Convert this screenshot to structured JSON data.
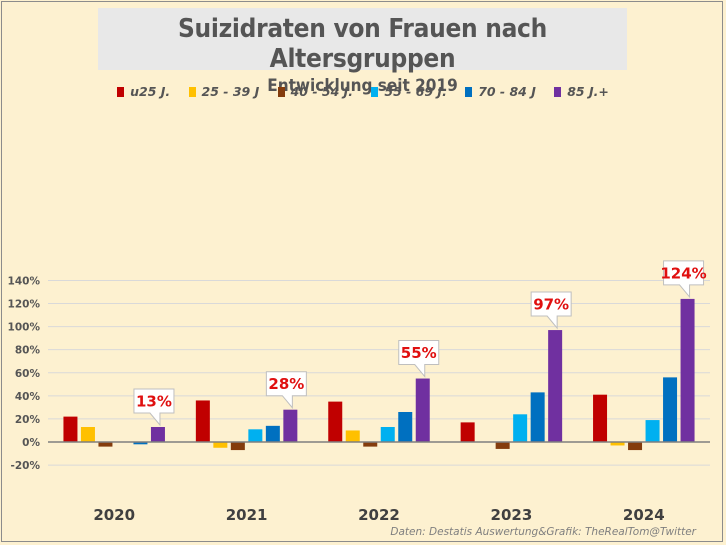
{
  "chart_data": {
    "type": "bar",
    "title": "Suizidraten von Frauen nach Altersgruppen",
    "subtitle": "Entwicklung seit 2019",
    "categories": [
      "2020",
      "2021",
      "2022",
      "2023",
      "2024"
    ],
    "series": [
      {
        "name": "u25 J.",
        "color": "#c00000",
        "values": [
          22,
          36,
          35,
          17,
          41
        ]
      },
      {
        "name": "25 - 39 J",
        "color": "#ffc000",
        "values": [
          13,
          -5,
          10,
          0,
          -3
        ]
      },
      {
        "name": "40 - 54 J.",
        "color": "#843c0c",
        "values": [
          -4,
          -7,
          -4,
          -6,
          -7
        ]
      },
      {
        "name": "55 - 69 J.",
        "color": "#00b0f0",
        "values": [
          0,
          11,
          13,
          24,
          19
        ]
      },
      {
        "name": "70 - 84 J",
        "color": "#0070c0",
        "values": [
          -2,
          14,
          26,
          43,
          56
        ]
      },
      {
        "name": "85 J.+",
        "color": "#7030a0",
        "values": [
          13,
          28,
          55,
          97,
          124
        ]
      }
    ],
    "yticks": [
      "-20%",
      "0%",
      "20%",
      "40%",
      "60%",
      "80%",
      "100%",
      "120%",
      "140%"
    ],
    "ylim": [
      -20,
      140
    ],
    "callouts": [
      "13%",
      "28%",
      "55%",
      "97%",
      "124%"
    ],
    "xlabel": "",
    "ylabel": ""
  },
  "source": "Daten: Destatis Auswertung&Grafik: TheRealTom@Twitter"
}
